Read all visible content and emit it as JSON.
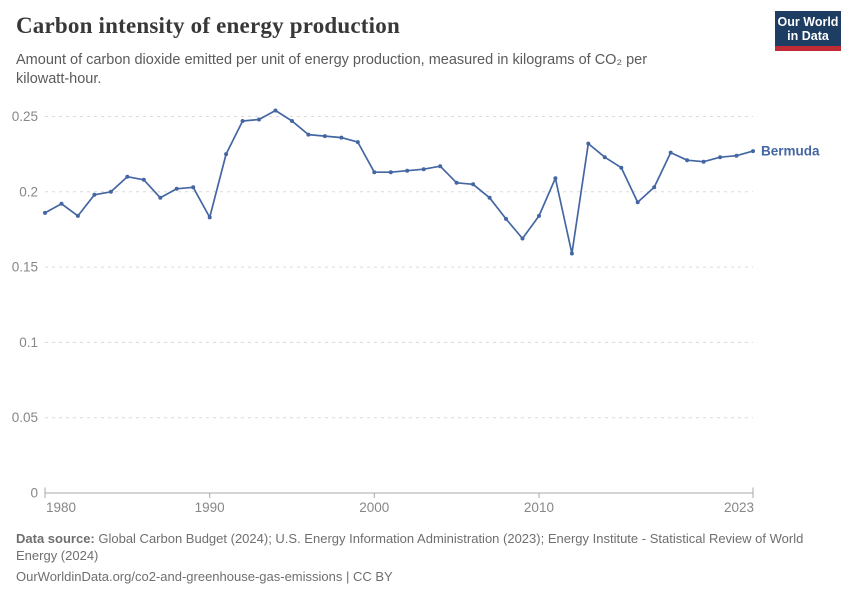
{
  "header": {
    "title": "Carbon intensity of energy production",
    "subtitle": "Amount of carbon dioxide emitted per unit of energy production, measured in kilograms of CO₂ per kilowatt-hour.",
    "logo": {
      "line1": "Our World",
      "line2": "in Data",
      "bg_color": "#1d3d63",
      "accent_color": "#c02a35"
    }
  },
  "chart_data": {
    "type": "line",
    "title": "Carbon intensity of energy production",
    "unit": "kilograms of CO₂ per kilowatt-hour",
    "x": [
      1980,
      1981,
      1982,
      1983,
      1984,
      1985,
      1986,
      1987,
      1988,
      1989,
      1990,
      1991,
      1992,
      1993,
      1994,
      1995,
      1996,
      1997,
      1998,
      1999,
      2000,
      2001,
      2002,
      2003,
      2004,
      2005,
      2006,
      2007,
      2008,
      2009,
      2010,
      2011,
      2012,
      2013,
      2014,
      2015,
      2016,
      2017,
      2018,
      2019,
      2020,
      2021,
      2022,
      2023
    ],
    "series": [
      {
        "name": "Bermuda",
        "values": [
          0.186,
          0.192,
          0.184,
          0.198,
          0.2,
          0.21,
          0.208,
          0.196,
          0.202,
          0.203,
          0.183,
          0.225,
          0.247,
          0.248,
          0.254,
          0.247,
          0.238,
          0.237,
          0.236,
          0.233,
          0.213,
          0.213,
          0.214,
          0.215,
          0.217,
          0.206,
          0.205,
          0.196,
          0.182,
          0.169,
          0.184,
          0.209,
          0.159,
          0.232,
          0.223,
          0.216,
          0.193,
          0.203,
          0.226,
          0.221,
          0.22,
          0.223,
          0.224,
          0.227
        ]
      }
    ],
    "xlim": [
      1980,
      2023
    ],
    "ylim": [
      0,
      0.25
    ],
    "x_ticks": [
      1980,
      1990,
      2000,
      2010,
      2023
    ],
    "y_ticks": [
      0,
      0.05,
      0.1,
      0.15,
      0.2,
      0.25
    ],
    "grid": "horizontal-dashed",
    "legend_position": "end-of-line-label",
    "line_color": "#4466a3",
    "grid_color": "#dadada",
    "axis_color": "#a8a8a8"
  },
  "footer": {
    "source_label": "Data source:",
    "source_text": " Global Carbon Budget (2024); U.S. Energy Information Administration (2023); Energy Institute - Statistical Review of World Energy (2024)",
    "url_line": "OurWorldinData.org/co2-and-greenhouse-gas-emissions | CC BY"
  }
}
